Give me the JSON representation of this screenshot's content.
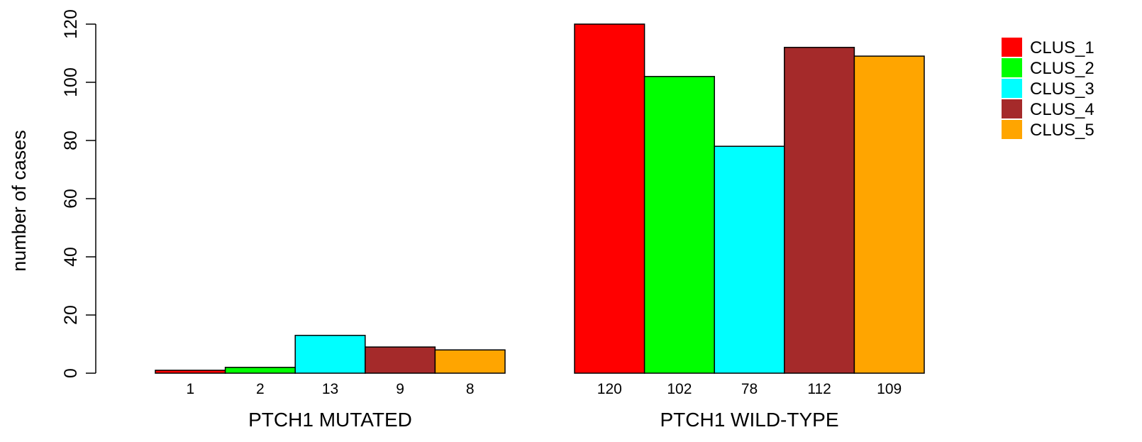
{
  "chart_data": {
    "type": "bar",
    "ylabel": "number of cases",
    "ylim": [
      0,
      120
    ],
    "yticks": [
      "0",
      "20",
      "40",
      "60",
      "80",
      "100",
      "120"
    ],
    "groups": [
      {
        "label": "PTCH1 MUTATED",
        "values": [
          1,
          2,
          13,
          9,
          8
        ],
        "value_labels": [
          "1",
          "2",
          "13",
          "9",
          "8"
        ]
      },
      {
        "label": "PTCH1 WILD-TYPE",
        "values": [
          120,
          102,
          78,
          112,
          109
        ],
        "value_labels": [
          "120",
          "102",
          "78",
          "112",
          "109"
        ]
      }
    ],
    "series": [
      {
        "name": "CLUS_1",
        "color": "#ff0000"
      },
      {
        "name": "CLUS_2",
        "color": "#00ff00"
      },
      {
        "name": "CLUS_3",
        "color": "#00ffff"
      },
      {
        "name": "CLUS_4",
        "color": "#a52a2a"
      },
      {
        "name": "CLUS_5",
        "color": "#ffa500"
      }
    ],
    "legend": "top-right",
    "grid": false
  }
}
